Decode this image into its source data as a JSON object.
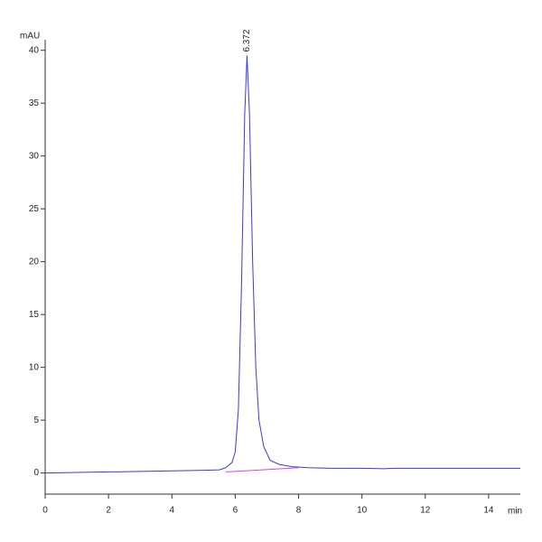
{
  "chart_data": {
    "type": "line",
    "ylabel": "mAU",
    "xlabel": "min",
    "annotations": [
      {
        "text": "6.372",
        "x": 6.372,
        "y": 39.5
      }
    ],
    "series": [
      {
        "color": "#3a3adf",
        "x": [
          0,
          1,
          2,
          3,
          4,
          5,
          5.5,
          5.7,
          5.9,
          6.0,
          6.1,
          6.2,
          6.3,
          6.372,
          6.45,
          6.55,
          6.65,
          6.75,
          6.9,
          7.1,
          7.4,
          7.8,
          8.3,
          9,
          10,
          10.7,
          11,
          12,
          13,
          14,
          15
        ],
        "values": [
          0.0,
          0.05,
          0.1,
          0.15,
          0.2,
          0.25,
          0.3,
          0.5,
          1.0,
          2.0,
          6,
          18,
          34,
          39.5,
          34,
          20,
          10,
          5,
          2.5,
          1.2,
          0.8,
          0.6,
          0.5,
          0.45,
          0.45,
          0.4,
          0.45,
          0.45,
          0.45,
          0.45,
          0.45
        ]
      },
      {
        "color": "#e040e0",
        "x": [
          5.7,
          8.0
        ],
        "values": [
          0.1,
          0.5
        ]
      }
    ],
    "xlim": [
      0,
      15
    ],
    "xticks": [
      0,
      2,
      4,
      6,
      8,
      10,
      12,
      14
    ],
    "ylim": [
      -2,
      41
    ],
    "yticks": [
      0,
      5,
      10,
      15,
      20,
      25,
      30,
      35,
      40
    ]
  }
}
